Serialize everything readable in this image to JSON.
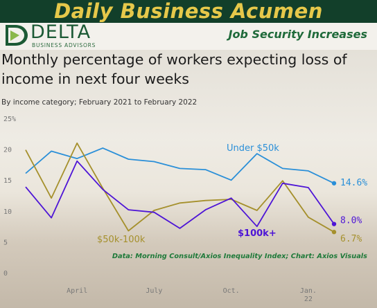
{
  "header": {
    "banner_title": "Daily Business Acumen",
    "logo_word": "DELTA",
    "logo_sub": "BUSINESS ADVISORS",
    "subtitle": "Job Security Increases"
  },
  "colors": {
    "banner_bg": "#123f2a",
    "banner_text": "#e6c84a",
    "under50k": "#2a8fd8",
    "k50_100": "#a5902c",
    "k100plus": "#4d14d6",
    "source": "#1f7a3a"
  },
  "chart_data": {
    "type": "line",
    "title": "Monthly percentage of workers expecting loss of income in next four weeks",
    "subtitle": "By income category; February 2021 to February 2022",
    "x": [
      "2021-02",
      "2021-03",
      "2021-04",
      "2021-05",
      "2021-06",
      "2021-07",
      "2021-08",
      "2021-09",
      "2021-10",
      "2021-11",
      "2021-12",
      "2022-01",
      "2022-02"
    ],
    "xticks": [
      {
        "x": "2021-04",
        "label": "April"
      },
      {
        "x": "2021-07",
        "label": "July"
      },
      {
        "x": "2021-10",
        "label": "Oct."
      },
      {
        "x": "2022-01",
        "label": "Jan.\n22"
      }
    ],
    "ylim": [
      0,
      25
    ],
    "yticks": [
      0,
      5,
      10,
      15,
      20,
      25
    ],
    "ytick_suffix_top": "%",
    "grid": false,
    "series": [
      {
        "name": "Under $50k",
        "color": "#2a8fd8",
        "end_label": "14.6%",
        "values": [
          16.2,
          19.8,
          18.6,
          20.3,
          18.5,
          18.1,
          17.0,
          16.8,
          15.1,
          19.4,
          17.0,
          16.6,
          14.6
        ]
      },
      {
        "name": "$50k-100k",
        "color": "#a5902c",
        "end_label": "6.7%",
        "values": [
          20.0,
          12.2,
          21.1,
          13.8,
          6.9,
          10.2,
          11.4,
          11.8,
          12.0,
          10.2,
          15.0,
          9.1,
          6.7
        ]
      },
      {
        "name": "$100k+",
        "color": "#4d14d6",
        "end_label": "8.0%",
        "values": [
          14.0,
          9.0,
          18.2,
          13.6,
          10.3,
          9.9,
          7.3,
          10.3,
          12.2,
          7.6,
          14.6,
          13.9,
          8.0
        ]
      }
    ],
    "source": "Data: Morning Consult/Axios Inequality Index; Chart: Axios Visuals"
  }
}
